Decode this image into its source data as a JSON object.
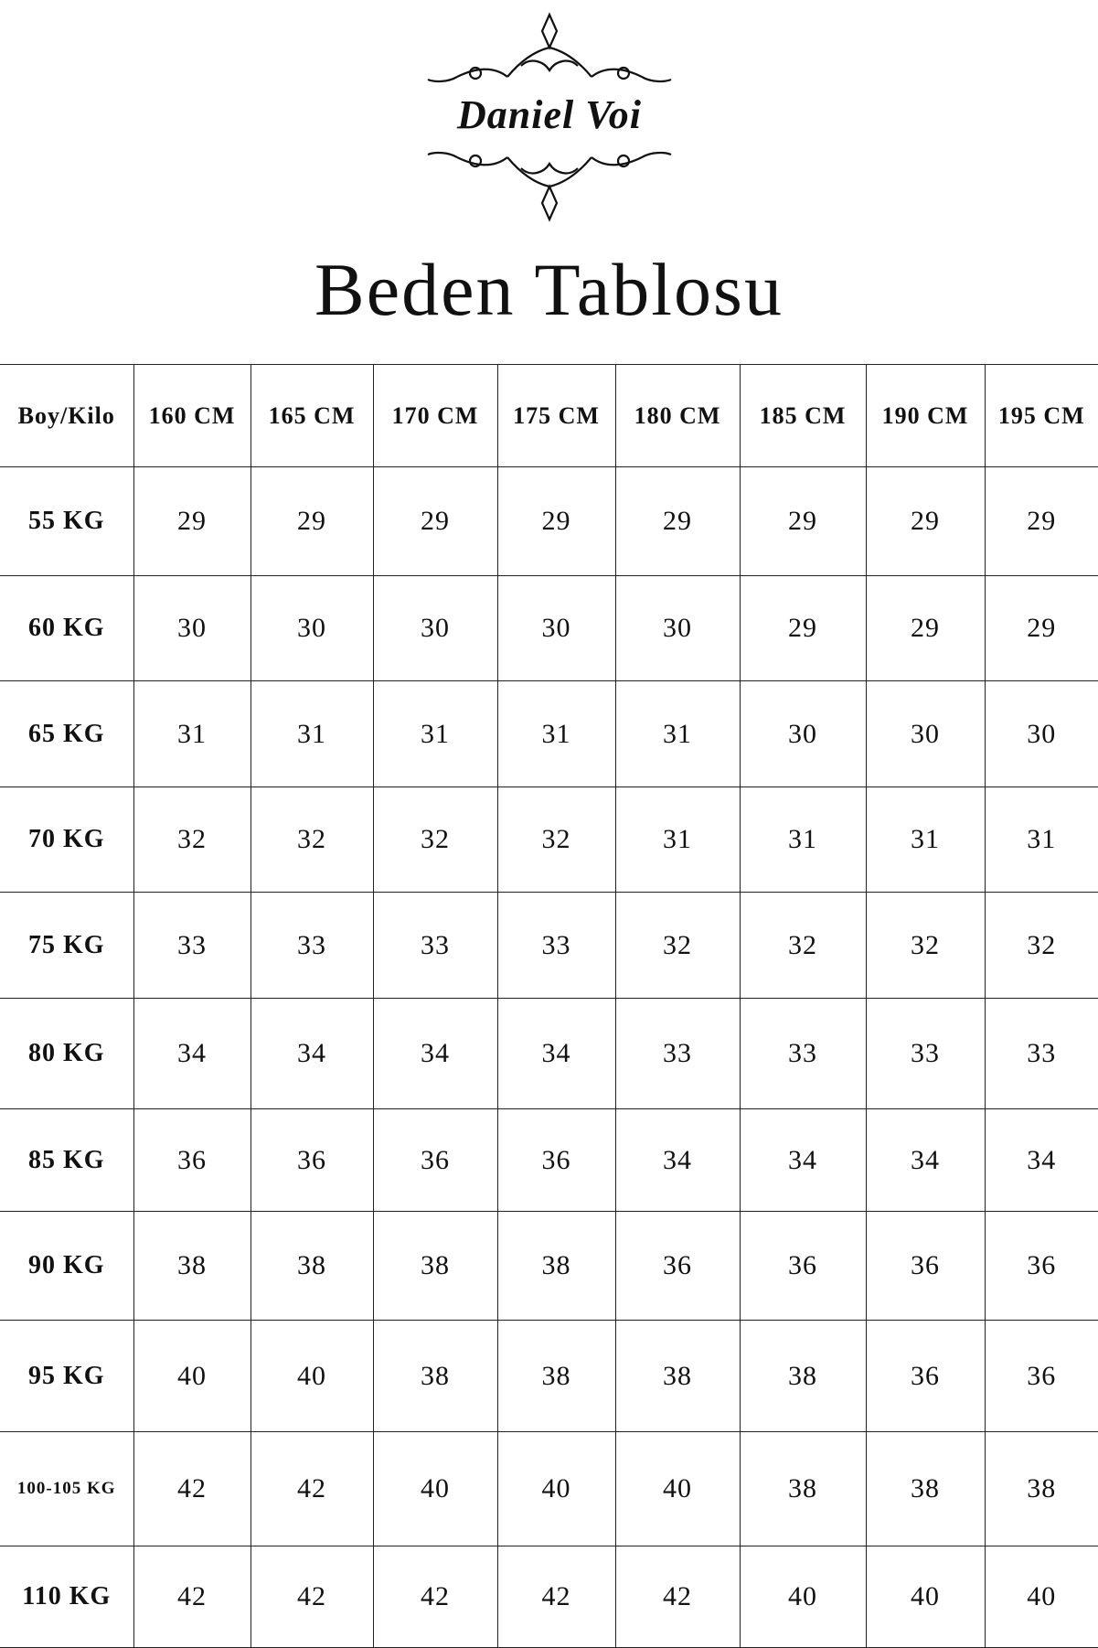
{
  "logo": {
    "brand_text": "Daniel Voi"
  },
  "title": "Beden Tablosu",
  "table": {
    "corner_header": "Boy/Kilo",
    "columns": [
      "160 CM",
      "165 CM",
      "170 CM",
      "175 CM",
      "180 CM",
      "185 CM",
      "190 CM",
      "195 CM"
    ],
    "rows": [
      {
        "label": "55 KG",
        "values": [
          "29",
          "29",
          "29",
          "29",
          "29",
          "29",
          "29",
          "29"
        ]
      },
      {
        "label": "60 KG",
        "values": [
          "30",
          "30",
          "30",
          "30",
          "30",
          "29",
          "29",
          "29"
        ]
      },
      {
        "label": "65 KG",
        "values": [
          "31",
          "31",
          "31",
          "31",
          "31",
          "30",
          "30",
          "30"
        ]
      },
      {
        "label": "70 KG",
        "values": [
          "32",
          "32",
          "32",
          "32",
          "31",
          "31",
          "31",
          "31"
        ]
      },
      {
        "label": "75 KG",
        "values": [
          "33",
          "33",
          "33",
          "33",
          "32",
          "32",
          "32",
          "32"
        ]
      },
      {
        "label": "80 KG",
        "values": [
          "34",
          "34",
          "34",
          "34",
          "33",
          "33",
          "33",
          "33"
        ]
      },
      {
        "label": "85 KG",
        "values": [
          "36",
          "36",
          "36",
          "36",
          "34",
          "34",
          "34",
          "34"
        ]
      },
      {
        "label": "90 KG",
        "values": [
          "38",
          "38",
          "38",
          "38",
          "36",
          "36",
          "36",
          "36"
        ]
      },
      {
        "label": "95 KG",
        "values": [
          "40",
          "40",
          "38",
          "38",
          "38",
          "38",
          "36",
          "36"
        ]
      },
      {
        "label": "100-105 KG",
        "values": [
          "42",
          "42",
          "40",
          "40",
          "40",
          "38",
          "38",
          "38"
        ]
      },
      {
        "label": "110 KG",
        "values": [
          "42",
          "42",
          "42",
          "42",
          "42",
          "40",
          "40",
          "40"
        ]
      }
    ]
  }
}
